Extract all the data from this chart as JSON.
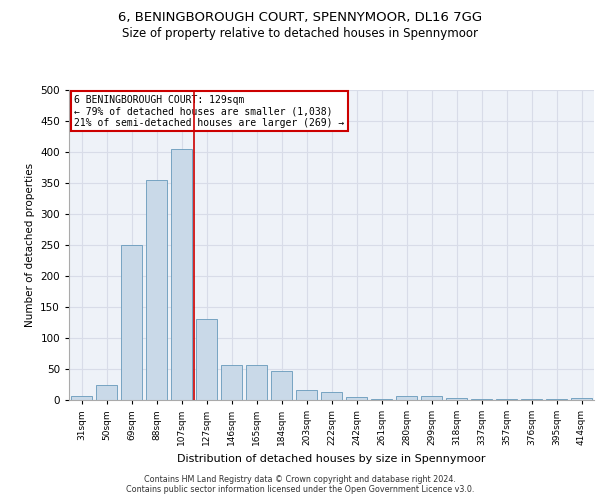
{
  "title1": "6, BENINGBOROUGH COURT, SPENNYMOOR, DL16 7GG",
  "title2": "Size of property relative to detached houses in Spennymoor",
  "xlabel": "Distribution of detached houses by size in Spennymoor",
  "ylabel": "Number of detached properties",
  "categories": [
    "31sqm",
    "50sqm",
    "69sqm",
    "88sqm",
    "107sqm",
    "127sqm",
    "146sqm",
    "165sqm",
    "184sqm",
    "203sqm",
    "222sqm",
    "242sqm",
    "261sqm",
    "280sqm",
    "299sqm",
    "318sqm",
    "337sqm",
    "357sqm",
    "376sqm",
    "395sqm",
    "414sqm"
  ],
  "values": [
    6,
    25,
    250,
    355,
    405,
    130,
    57,
    57,
    47,
    16,
    13,
    5,
    2,
    7,
    6,
    3,
    2,
    1,
    2,
    1,
    3
  ],
  "bar_color": "#c9d9e8",
  "bar_edge_color": "#6699bb",
  "vline_color": "#cc0000",
  "annotation_text": "6 BENINGBOROUGH COURT: 129sqm\n← 79% of detached houses are smaller (1,038)\n21% of semi-detached houses are larger (269) →",
  "annotation_box_color": "#ffffff",
  "annotation_box_edge": "#cc0000",
  "ylim": [
    0,
    500
  ],
  "yticks": [
    0,
    50,
    100,
    150,
    200,
    250,
    300,
    350,
    400,
    450,
    500
  ],
  "grid_color": "#d8dce8",
  "background_color": "#eef2f8",
  "footer1": "Contains HM Land Registry data © Crown copyright and database right 2024.",
  "footer2": "Contains public sector information licensed under the Open Government Licence v3.0."
}
